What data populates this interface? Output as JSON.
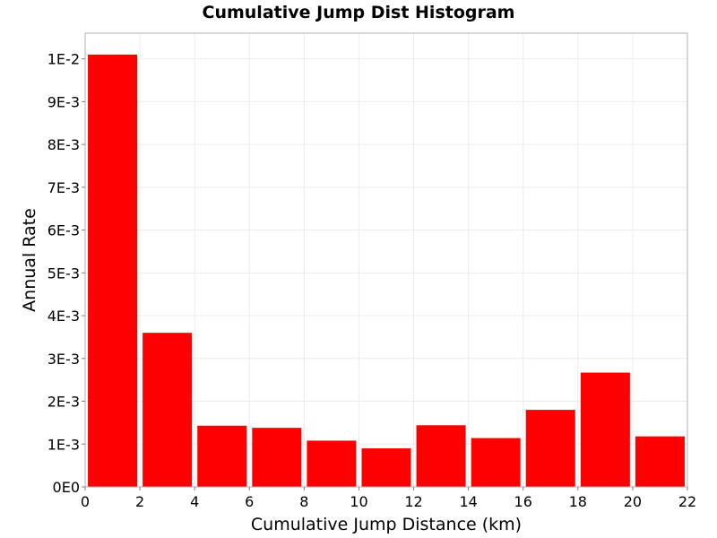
{
  "chart_data": {
    "type": "bar",
    "title": "Cumulative Jump Dist Histogram",
    "xlabel": "Cumulative Jump Distance (km)",
    "ylabel": "Annual Rate",
    "xlim": [
      0,
      22
    ],
    "ylim": [
      0,
      0.0106
    ],
    "grid": true,
    "bar_color": "#ff0000",
    "bar_width": 1.8,
    "x_ticks": [
      {
        "value": 0,
        "label": "0"
      },
      {
        "value": 2,
        "label": "2"
      },
      {
        "value": 4,
        "label": "4"
      },
      {
        "value": 6,
        "label": "6"
      },
      {
        "value": 8,
        "label": "8"
      },
      {
        "value": 10,
        "label": "10"
      },
      {
        "value": 12,
        "label": "12"
      },
      {
        "value": 14,
        "label": "14"
      },
      {
        "value": 16,
        "label": "16"
      },
      {
        "value": 18,
        "label": "18"
      },
      {
        "value": 20,
        "label": "20"
      },
      {
        "value": 22,
        "label": "22"
      }
    ],
    "y_ticks": [
      {
        "value": 0,
        "label": "0E0"
      },
      {
        "value": 0.001,
        "label": "1E-3"
      },
      {
        "value": 0.002,
        "label": "2E-3"
      },
      {
        "value": 0.003,
        "label": "3E-3"
      },
      {
        "value": 0.004,
        "label": "4E-3"
      },
      {
        "value": 0.005,
        "label": "5E-3"
      },
      {
        "value": 0.006,
        "label": "6E-3"
      },
      {
        "value": 0.007,
        "label": "7E-3"
      },
      {
        "value": 0.008,
        "label": "8E-3"
      },
      {
        "value": 0.009,
        "label": "9E-3"
      },
      {
        "value": 0.01,
        "label": "1E-2"
      }
    ],
    "x": [
      1,
      3,
      5,
      7,
      9,
      11,
      13,
      15,
      17,
      19,
      21
    ],
    "values": [
      0.0101,
      0.0036,
      0.00143,
      0.00138,
      0.00108,
      0.0009,
      0.00144,
      0.00114,
      0.0018,
      0.00267,
      0.00118
    ]
  }
}
